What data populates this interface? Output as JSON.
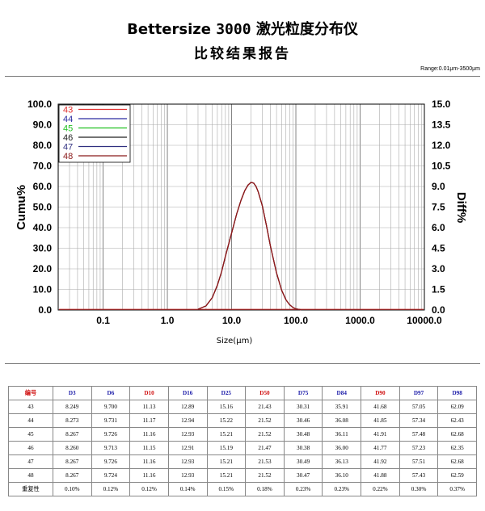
{
  "header": {
    "brand": "Bettersize",
    "model": "3000",
    "product": " 激光粒度分布仪",
    "subtitle": "比较结果报告",
    "range": "Range:0.01μm-3500μm"
  },
  "chart_data": {
    "type": "line",
    "xscale": "log",
    "xlim": [
      0.02,
      10000
    ],
    "ylim_left": [
      0,
      100
    ],
    "ylim_right": [
      0,
      15
    ],
    "xlabel": "Size(μm)",
    "ylabel_left": "Cumu%",
    "ylabel_right": "Diff%",
    "x_ticks": [
      "0.1",
      "1.0",
      "10.0",
      "100.0",
      "1000.0",
      "10000.0"
    ],
    "y_ticks_left": [
      "0.0",
      "10.0",
      "20.0",
      "30.0",
      "40.0",
      "50.0",
      "60.0",
      "70.0",
      "80.0",
      "90.0",
      "100.0"
    ],
    "y_ticks_right": [
      "0.0",
      "1.5",
      "3.0",
      "4.5",
      "6.0",
      "7.5",
      "9.0",
      "10.5",
      "12.0",
      "13.5",
      "15.0"
    ],
    "grid": true,
    "legend_position": "top-left",
    "series": [
      {
        "name": "43",
        "color": "#e03030"
      },
      {
        "name": "44",
        "color": "#2a2aa0"
      },
      {
        "name": "45",
        "color": "#20c020"
      },
      {
        "name": "46",
        "color": "#222222"
      },
      {
        "name": "47",
        "color": "#303080"
      },
      {
        "name": "48",
        "color": "#8a1a1a"
      }
    ],
    "curve": {
      "x": [
        3,
        4,
        5,
        6,
        7,
        8,
        10,
        12,
        14,
        16,
        18,
        20,
        22,
        24,
        26,
        30,
        35,
        40,
        50,
        60,
        70,
        80,
        90,
        100,
        120
      ],
      "diff": [
        0.05,
        0.3,
        0.9,
        1.8,
        2.8,
        3.9,
        5.6,
        7.0,
        8.0,
        8.7,
        9.1,
        9.3,
        9.25,
        9.0,
        8.6,
        7.6,
        6.1,
        4.7,
        2.7,
        1.45,
        0.75,
        0.38,
        0.18,
        0.08,
        0.02
      ]
    }
  },
  "table": {
    "headers": [
      "编号",
      "D3",
      "D6",
      "D10",
      "D16",
      "D25",
      "D50",
      "D75",
      "D84",
      "D90",
      "D97",
      "D98"
    ],
    "header_colors": [
      "red",
      "blue",
      "blue",
      "red",
      "blue",
      "blue",
      "red",
      "blue",
      "blue",
      "red",
      "blue",
      "blue"
    ],
    "rows": [
      [
        "43",
        "8.249",
        "9.700",
        "11.13",
        "12.89",
        "15.16",
        "21.43",
        "30.31",
        "35.91",
        "41.68",
        "57.05",
        "62.09"
      ],
      [
        "44",
        "8.273",
        "9.731",
        "11.17",
        "12.94",
        "15.22",
        "21.52",
        "30.46",
        "36.08",
        "41.85",
        "57.34",
        "62.43"
      ],
      [
        "45",
        "8.267",
        "9.726",
        "11.16",
        "12.93",
        "15.21",
        "21.52",
        "30.48",
        "36.11",
        "41.91",
        "57.48",
        "62.68"
      ],
      [
        "46",
        "8.260",
        "9.713",
        "11.15",
        "12.91",
        "15.19",
        "21.47",
        "30.38",
        "36.00",
        "41.77",
        "57.23",
        "62.35"
      ],
      [
        "47",
        "8.267",
        "9.726",
        "11.16",
        "12.93",
        "15.21",
        "21.53",
        "30.49",
        "36.13",
        "41.92",
        "57.51",
        "62.68"
      ],
      [
        "48",
        "8.267",
        "9.724",
        "11.16",
        "12.93",
        "15.21",
        "21.52",
        "30.47",
        "36.10",
        "41.88",
        "57.43",
        "62.59"
      ],
      [
        "重复性",
        "0.10%",
        "0.12%",
        "0.12%",
        "0.14%",
        "0.15%",
        "0.18%",
        "0.23%",
        "0.23%",
        "0.22%",
        "0.30%",
        "0.37%"
      ]
    ]
  }
}
